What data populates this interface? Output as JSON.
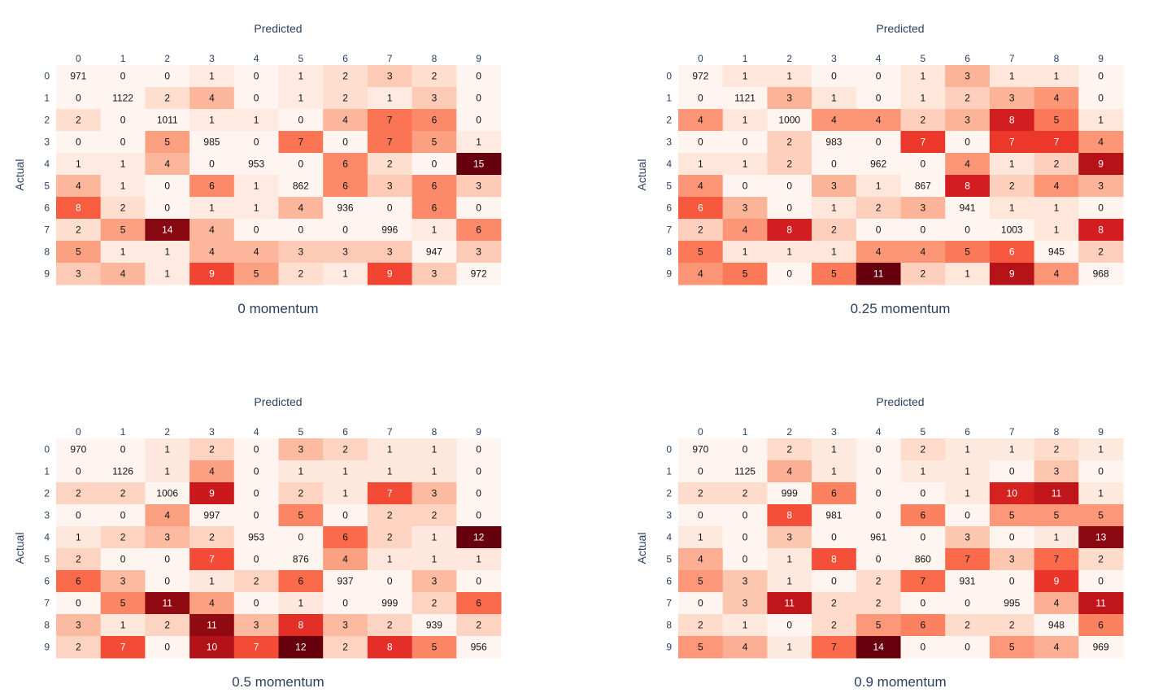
{
  "chart_data": [
    {
      "type": "heatmap",
      "title": "0 momentum",
      "xlabel": "Predicted",
      "ylabel": "Actual",
      "colorscale": "Reds",
      "x": [
        "0",
        "1",
        "2",
        "3",
        "4",
        "5",
        "6",
        "7",
        "8",
        "9"
      ],
      "y": [
        "0",
        "1",
        "2",
        "3",
        "4",
        "5",
        "6",
        "7",
        "8",
        "9"
      ],
      "z": [
        [
          971,
          0,
          0,
          1,
          0,
          1,
          2,
          3,
          2,
          0
        ],
        [
          0,
          1122,
          2,
          4,
          0,
          1,
          2,
          1,
          3,
          0
        ],
        [
          2,
          0,
          1011,
          1,
          1,
          0,
          4,
          7,
          6,
          0
        ],
        [
          0,
          0,
          5,
          985,
          0,
          7,
          0,
          7,
          5,
          1
        ],
        [
          1,
          1,
          4,
          0,
          953,
          0,
          6,
          2,
          0,
          15
        ],
        [
          4,
          1,
          0,
          6,
          1,
          862,
          6,
          3,
          6,
          3
        ],
        [
          8,
          2,
          0,
          1,
          1,
          4,
          936,
          0,
          6,
          0
        ],
        [
          2,
          5,
          14,
          4,
          0,
          0,
          0,
          996,
          1,
          6
        ],
        [
          5,
          1,
          1,
          4,
          4,
          3,
          3,
          3,
          947,
          3
        ],
        [
          3,
          4,
          1,
          9,
          5,
          2,
          1,
          9,
          3,
          972
        ]
      ]
    },
    {
      "type": "heatmap",
      "title": "0.25 momentum",
      "xlabel": "Predicted",
      "ylabel": "Actual",
      "colorscale": "Reds",
      "x": [
        "0",
        "1",
        "2",
        "3",
        "4",
        "5",
        "6",
        "7",
        "8",
        "9"
      ],
      "y": [
        "0",
        "1",
        "2",
        "3",
        "4",
        "5",
        "6",
        "7",
        "8",
        "9"
      ],
      "z": [
        [
          972,
          1,
          1,
          0,
          0,
          1,
          3,
          1,
          1,
          0
        ],
        [
          0,
          1121,
          3,
          1,
          0,
          1,
          2,
          3,
          4,
          0
        ],
        [
          4,
          1,
          1000,
          4,
          4,
          2,
          3,
          8,
          5,
          1
        ],
        [
          0,
          0,
          2,
          983,
          0,
          7,
          0,
          7,
          7,
          4
        ],
        [
          1,
          1,
          2,
          0,
          962,
          0,
          4,
          1,
          2,
          9
        ],
        [
          4,
          0,
          0,
          3,
          1,
          867,
          8,
          2,
          4,
          3
        ],
        [
          6,
          3,
          0,
          1,
          2,
          3,
          941,
          1,
          1,
          0
        ],
        [
          2,
          4,
          8,
          2,
          0,
          0,
          0,
          1003,
          1,
          8
        ],
        [
          5,
          1,
          1,
          1,
          4,
          4,
          5,
          6,
          945,
          2
        ],
        [
          4,
          5,
          0,
          5,
          11,
          2,
          1,
          9,
          4,
          968
        ]
      ]
    },
    {
      "type": "heatmap",
      "title": "0.5 momentum",
      "xlabel": "Predicted",
      "ylabel": "Actual",
      "colorscale": "Reds",
      "x": [
        "0",
        "1",
        "2",
        "3",
        "4",
        "5",
        "6",
        "7",
        "8",
        "9"
      ],
      "y": [
        "0",
        "1",
        "2",
        "3",
        "4",
        "5",
        "6",
        "7",
        "8",
        "9"
      ],
      "z": [
        [
          970,
          0,
          1,
          2,
          0,
          3,
          2,
          1,
          1,
          0
        ],
        [
          0,
          1126,
          1,
          4,
          0,
          1,
          1,
          1,
          1,
          0
        ],
        [
          2,
          2,
          1006,
          9,
          0,
          2,
          1,
          7,
          3,
          0
        ],
        [
          0,
          0,
          4,
          997,
          0,
          5,
          0,
          2,
          2,
          0
        ],
        [
          1,
          2,
          3,
          2,
          953,
          0,
          6,
          2,
          1,
          12
        ],
        [
          2,
          0,
          0,
          7,
          0,
          876,
          4,
          1,
          1,
          1
        ],
        [
          6,
          3,
          0,
          1,
          2,
          6,
          937,
          0,
          3,
          0
        ],
        [
          0,
          5,
          11,
          4,
          0,
          1,
          0,
          999,
          2,
          6
        ],
        [
          3,
          1,
          2,
          11,
          3,
          8,
          3,
          2,
          939,
          2
        ],
        [
          2,
          7,
          0,
          10,
          7,
          12,
          2,
          8,
          5,
          956
        ]
      ]
    },
    {
      "type": "heatmap",
      "title": "0.9 momentum",
      "xlabel": "Predicted",
      "ylabel": "Actual",
      "colorscale": "Reds",
      "x": [
        "0",
        "1",
        "2",
        "3",
        "4",
        "5",
        "6",
        "7",
        "8",
        "9"
      ],
      "y": [
        "0",
        "1",
        "2",
        "3",
        "4",
        "5",
        "6",
        "7",
        "8",
        "9"
      ],
      "z": [
        [
          970,
          0,
          2,
          1,
          0,
          2,
          1,
          1,
          2,
          1
        ],
        [
          0,
          1125,
          4,
          1,
          0,
          1,
          1,
          0,
          3,
          0
        ],
        [
          2,
          2,
          999,
          6,
          0,
          0,
          1,
          10,
          11,
          1
        ],
        [
          0,
          0,
          8,
          981,
          0,
          6,
          0,
          5,
          5,
          5
        ],
        [
          1,
          0,
          3,
          0,
          961,
          0,
          3,
          0,
          1,
          13
        ],
        [
          4,
          0,
          1,
          8,
          0,
          860,
          7,
          3,
          7,
          2
        ],
        [
          5,
          3,
          1,
          0,
          2,
          7,
          931,
          0,
          9,
          0
        ],
        [
          0,
          3,
          11,
          2,
          2,
          0,
          0,
          995,
          4,
          11
        ],
        [
          2,
          1,
          0,
          2,
          5,
          6,
          2,
          2,
          948,
          6
        ],
        [
          5,
          4,
          1,
          7,
          14,
          0,
          0,
          5,
          4,
          969
        ]
      ]
    }
  ]
}
